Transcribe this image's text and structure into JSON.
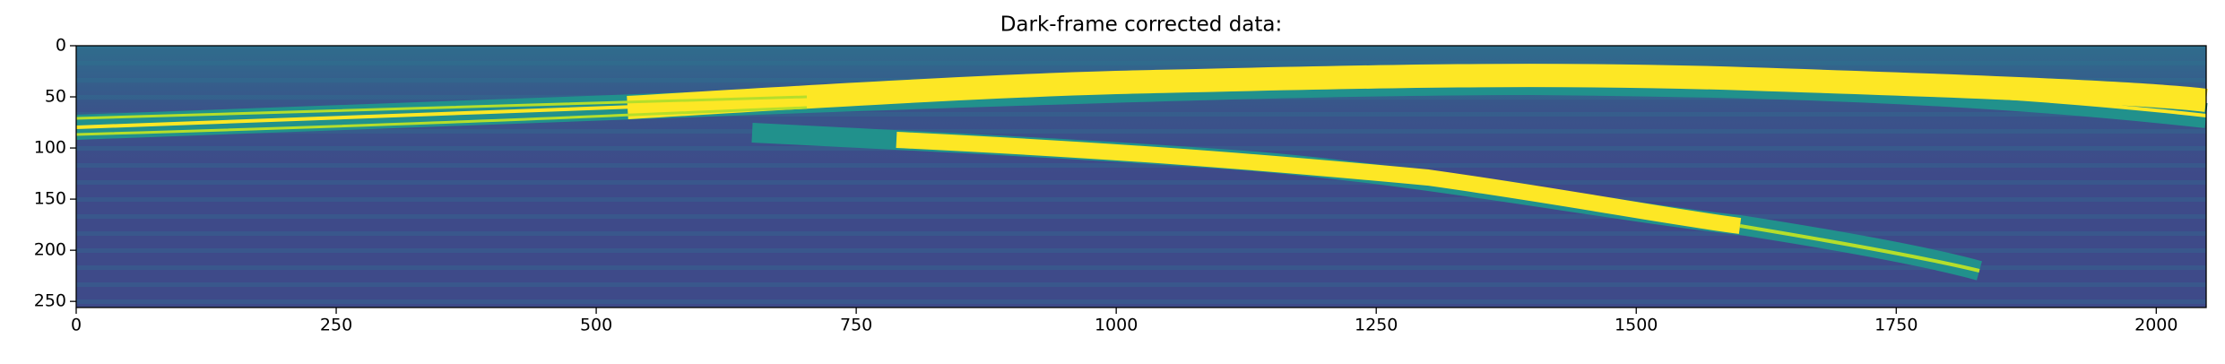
{
  "chart_data": {
    "type": "image",
    "title": "Dark-frame corrected data:",
    "xlim": [
      0,
      2048
    ],
    "xticks": [
      0,
      250,
      500,
      750,
      1000,
      1250,
      1500,
      1750,
      2000
    ],
    "ylim": [
      256,
      0
    ],
    "yticks": [
      0,
      50,
      100,
      150,
      200,
      250
    ]
  }
}
